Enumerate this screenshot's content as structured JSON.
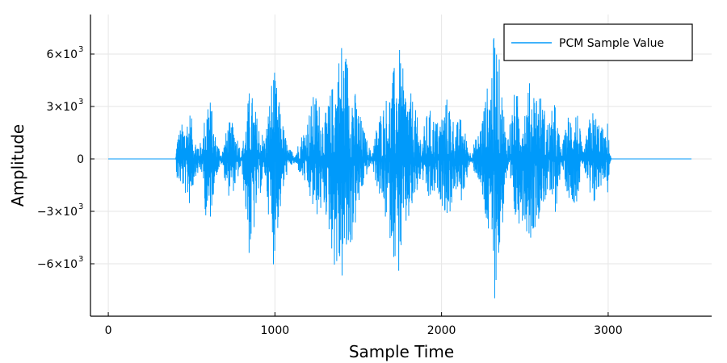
{
  "chart_data": {
    "type": "line",
    "title": "",
    "xlabel": "Sample Time",
    "ylabel": "Amplitude",
    "xlim": [
      -107,
      3621
    ],
    "ylim": [
      -9000,
      8262
    ],
    "grid": true,
    "legend_position": "top-right",
    "xticks": [
      {
        "value": 0,
        "label": "0"
      },
      {
        "value": 1000,
        "label": "1000"
      },
      {
        "value": 2000,
        "label": "2000"
      },
      {
        "value": 3000,
        "label": "3000"
      }
    ],
    "yticks": [
      {
        "value": 6000,
        "label": "6×10",
        "exp": "3"
      },
      {
        "value": 3000,
        "label": "3×10",
        "exp": "3"
      },
      {
        "value": 0,
        "label": "0",
        "exp": ""
      },
      {
        "value": -3000,
        "label": "−3×10",
        "exp": "3"
      },
      {
        "value": -6000,
        "label": "−6×10",
        "exp": "3"
      }
    ],
    "series": [
      {
        "name": "PCM Sample Value",
        "color": "#009AFA",
        "x_range": [
          0,
          3500
        ],
        "note": "Speech waveform; envelope of sample values (max, min) estimated per sample index",
        "envelope": [
          {
            "x": 0,
            "max": 0,
            "min": 0
          },
          {
            "x": 405,
            "max": 0,
            "min": 0
          },
          {
            "x": 412,
            "max": 1500,
            "min": -1300
          },
          {
            "x": 450,
            "max": 2200,
            "min": -1800
          },
          {
            "x": 490,
            "max": 2900,
            "min": -2800
          },
          {
            "x": 520,
            "max": 1200,
            "min": -1000
          },
          {
            "x": 560,
            "max": 900,
            "min": -800
          },
          {
            "x": 600,
            "max": 4500,
            "min": -4900
          },
          {
            "x": 640,
            "max": 1500,
            "min": -1200
          },
          {
            "x": 680,
            "max": 300,
            "min": -300
          },
          {
            "x": 720,
            "max": 2200,
            "min": -2200
          },
          {
            "x": 760,
            "max": 2000,
            "min": -1800
          },
          {
            "x": 800,
            "max": 400,
            "min": -400
          },
          {
            "x": 850,
            "max": 4300,
            "min": -6300
          },
          {
            "x": 900,
            "max": 2200,
            "min": -2500
          },
          {
            "x": 940,
            "max": 1200,
            "min": -1000
          },
          {
            "x": 990,
            "max": 5500,
            "min": -6200
          },
          {
            "x": 1040,
            "max": 2500,
            "min": -2600
          },
          {
            "x": 1080,
            "max": 600,
            "min": -500
          },
          {
            "x": 1120,
            "max": 400,
            "min": -300
          },
          {
            "x": 1180,
            "max": 2000,
            "min": -1500
          },
          {
            "x": 1240,
            "max": 4000,
            "min": -3500
          },
          {
            "x": 1300,
            "max": 2500,
            "min": -3000
          },
          {
            "x": 1360,
            "max": 5000,
            "min": -6500
          },
          {
            "x": 1400,
            "max": 7200,
            "min": -7400
          },
          {
            "x": 1440,
            "max": 6000,
            "min": -6000
          },
          {
            "x": 1500,
            "max": 3000,
            "min": -3200
          },
          {
            "x": 1540,
            "max": 1500,
            "min": -1200
          },
          {
            "x": 1580,
            "max": 300,
            "min": -300
          },
          {
            "x": 1620,
            "max": 2500,
            "min": -2000
          },
          {
            "x": 1700,
            "max": 4500,
            "min": -5000
          },
          {
            "x": 1740,
            "max": 6800,
            "min": -7000
          },
          {
            "x": 1780,
            "max": 4500,
            "min": -4500
          },
          {
            "x": 1830,
            "max": 3500,
            "min": -3000
          },
          {
            "x": 1880,
            "max": 1200,
            "min": -1000
          },
          {
            "x": 1920,
            "max": 3000,
            "min": -2700
          },
          {
            "x": 1980,
            "max": 2200,
            "min": -2000
          },
          {
            "x": 2040,
            "max": 3800,
            "min": -3700
          },
          {
            "x": 2080,
            "max": 2000,
            "min": -1800
          },
          {
            "x": 2120,
            "max": 2500,
            "min": -2600
          },
          {
            "x": 2170,
            "max": 400,
            "min": -300
          },
          {
            "x": 2220,
            "max": 1500,
            "min": -1200
          },
          {
            "x": 2290,
            "max": 5000,
            "min": -5500
          },
          {
            "x": 2320,
            "max": 7700,
            "min": -8100
          },
          {
            "x": 2350,
            "max": 5500,
            "min": -6000
          },
          {
            "x": 2390,
            "max": 1200,
            "min": -1000
          },
          {
            "x": 2440,
            "max": 4000,
            "min": -4000
          },
          {
            "x": 2490,
            "max": 3200,
            "min": -3500
          },
          {
            "x": 2530,
            "max": 4500,
            "min": -4800
          },
          {
            "x": 2580,
            "max": 4300,
            "min": -3500
          },
          {
            "x": 2640,
            "max": 2200,
            "min": -2000
          },
          {
            "x": 2680,
            "max": 3300,
            "min": -3500
          },
          {
            "x": 2720,
            "max": 500,
            "min": -400
          },
          {
            "x": 2760,
            "max": 2600,
            "min": -2300
          },
          {
            "x": 2810,
            "max": 3300,
            "min": -2600
          },
          {
            "x": 2850,
            "max": 300,
            "min": -200
          },
          {
            "x": 2900,
            "max": 3000,
            "min": -3400
          },
          {
            "x": 2950,
            "max": 2200,
            "min": -1700
          },
          {
            "x": 2990,
            "max": 1200,
            "min": -1000
          },
          {
            "x": 3000,
            "max": 2800,
            "min": -2700
          },
          {
            "x": 3012,
            "max": 300,
            "min": -200
          },
          {
            "x": 3020,
            "max": 0,
            "min": 0
          },
          {
            "x": 3500,
            "max": 0,
            "min": 0
          }
        ]
      }
    ]
  },
  "legend": {
    "entries": [
      {
        "label": "PCM Sample Value",
        "color": "#009AFA"
      }
    ]
  }
}
